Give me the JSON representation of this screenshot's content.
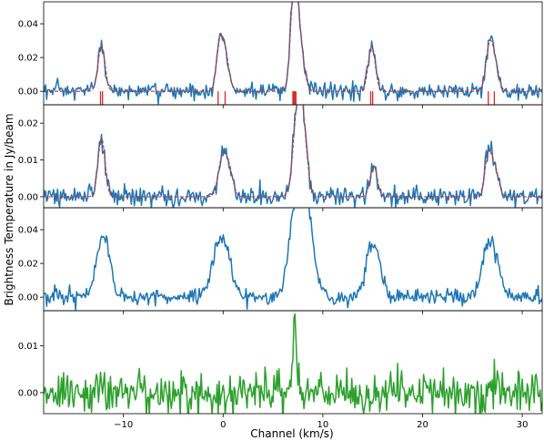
{
  "figure": {
    "ylabel": "Brightness Temperature in Jy/beam",
    "xlabel": "Channel (km/s)"
  },
  "chart_data": [
    {
      "type": "line",
      "xlim": [
        -18,
        32
      ],
      "ylim": [
        -0.008,
        0.053
      ],
      "grid": false,
      "yticks": [
        0.0,
        0.02,
        0.04
      ],
      "ytick_labels": [
        "0.00",
        "0.02",
        "0.04"
      ],
      "xticks": [
        -10,
        0,
        10,
        20,
        30
      ],
      "xtick_labels": [],
      "noise": 0.0025,
      "peaks": [
        {
          "center": -12.2,
          "height": 0.027,
          "width": 0.35
        },
        {
          "center": -0.3,
          "height": 0.029,
          "width": 0.35
        },
        {
          "center": 0.3,
          "height": 0.017,
          "width": 0.35
        },
        {
          "center": 7.1,
          "height": 0.05,
          "width": 0.35
        },
        {
          "center": 7.6,
          "height": 0.03,
          "width": 0.45
        },
        {
          "center": 14.9,
          "height": 0.027,
          "width": 0.35
        },
        {
          "center": 26.7,
          "height": 0.026,
          "width": 0.35
        },
        {
          "center": 27.3,
          "height": 0.015,
          "width": 0.35
        }
      ],
      "series": [
        {
          "color": "#1f77b4",
          "style": "solid"
        },
        {
          "color": "#d62728",
          "style": "dashed"
        }
      ],
      "markers": [
        -12.3,
        -12.1,
        -0.5,
        0.2,
        7.0,
        7.1,
        7.2,
        7.3,
        14.8,
        15.0,
        26.6,
        27.2
      ],
      "marker_color": "#d62728"
    },
    {
      "type": "line",
      "xlim": [
        -18,
        32
      ],
      "ylim": [
        -0.003,
        0.025
      ],
      "grid": false,
      "yticks": [
        0.0,
        0.01,
        0.02
      ],
      "ytick_labels": [
        "0.00",
        "0.01",
        "0.02"
      ],
      "xticks": [
        -10,
        0,
        10,
        20,
        30
      ],
      "xtick_labels": [],
      "noise": 0.0013,
      "peaks": [
        {
          "center": -12.2,
          "height": 0.016,
          "width": 0.35
        },
        {
          "center": -0.1,
          "height": 0.01,
          "width": 0.4
        },
        {
          "center": 0.6,
          "height": 0.007,
          "width": 0.4
        },
        {
          "center": 7.5,
          "height": 0.024,
          "width": 0.45
        },
        {
          "center": 8.1,
          "height": 0.012,
          "width": 0.4
        },
        {
          "center": 15.1,
          "height": 0.0085,
          "width": 0.35
        },
        {
          "center": 26.6,
          "height": 0.0115,
          "width": 0.35
        },
        {
          "center": 27.3,
          "height": 0.007,
          "width": 0.35
        }
      ],
      "series": [
        {
          "color": "#1f77b4",
          "style": "solid"
        },
        {
          "color": "#d62728",
          "style": "dashed"
        }
      ],
      "markers": [],
      "marker_color": "#d62728"
    },
    {
      "type": "line",
      "xlim": [
        -18,
        32
      ],
      "ylim": [
        -0.008,
        0.053
      ],
      "grid": false,
      "yticks": [
        0.0,
        0.02,
        0.04
      ],
      "ytick_labels": [
        "0.00",
        "0.02",
        "0.04"
      ],
      "xticks": [
        -10,
        0,
        10,
        20,
        30
      ],
      "xtick_labels": [],
      "noise": 0.0025,
      "peaks": [
        {
          "center": -12.3,
          "height": 0.026,
          "width": 0.55
        },
        {
          "center": -11.6,
          "height": 0.02,
          "width": 0.5
        },
        {
          "center": -0.6,
          "height": 0.025,
          "width": 0.6
        },
        {
          "center": 0.4,
          "height": 0.023,
          "width": 0.6
        },
        {
          "center": 7.3,
          "height": 0.05,
          "width": 0.7
        },
        {
          "center": 8.4,
          "height": 0.049,
          "width": 0.7
        },
        {
          "center": 14.7,
          "height": 0.021,
          "width": 0.55
        },
        {
          "center": 15.4,
          "height": 0.019,
          "width": 0.55
        },
        {
          "center": 26.4,
          "height": 0.024,
          "width": 0.6
        },
        {
          "center": 27.3,
          "height": 0.018,
          "width": 0.6
        }
      ],
      "series": [
        {
          "color": "#1f77b4",
          "style": "solid"
        }
      ],
      "markers": [],
      "marker_color": "#d62728"
    },
    {
      "type": "line",
      "xlim": [
        -18,
        32
      ],
      "ylim": [
        -0.0045,
        0.0175
      ],
      "grid": false,
      "yticks": [
        0.0,
        0.01
      ],
      "ytick_labels": [
        "0.00",
        "0.01"
      ],
      "xticks": [
        -10,
        0,
        10,
        20,
        30
      ],
      "xtick_labels": [
        "−10",
        "0",
        "10",
        "20",
        "30"
      ],
      "noise": 0.0022,
      "peaks": [
        {
          "center": 7.2,
          "height": 0.016,
          "width": 0.18
        }
      ],
      "series": [
        {
          "color": "#2ca02c",
          "style": "solid"
        }
      ],
      "markers": [],
      "marker_color": "#d62728"
    }
  ]
}
